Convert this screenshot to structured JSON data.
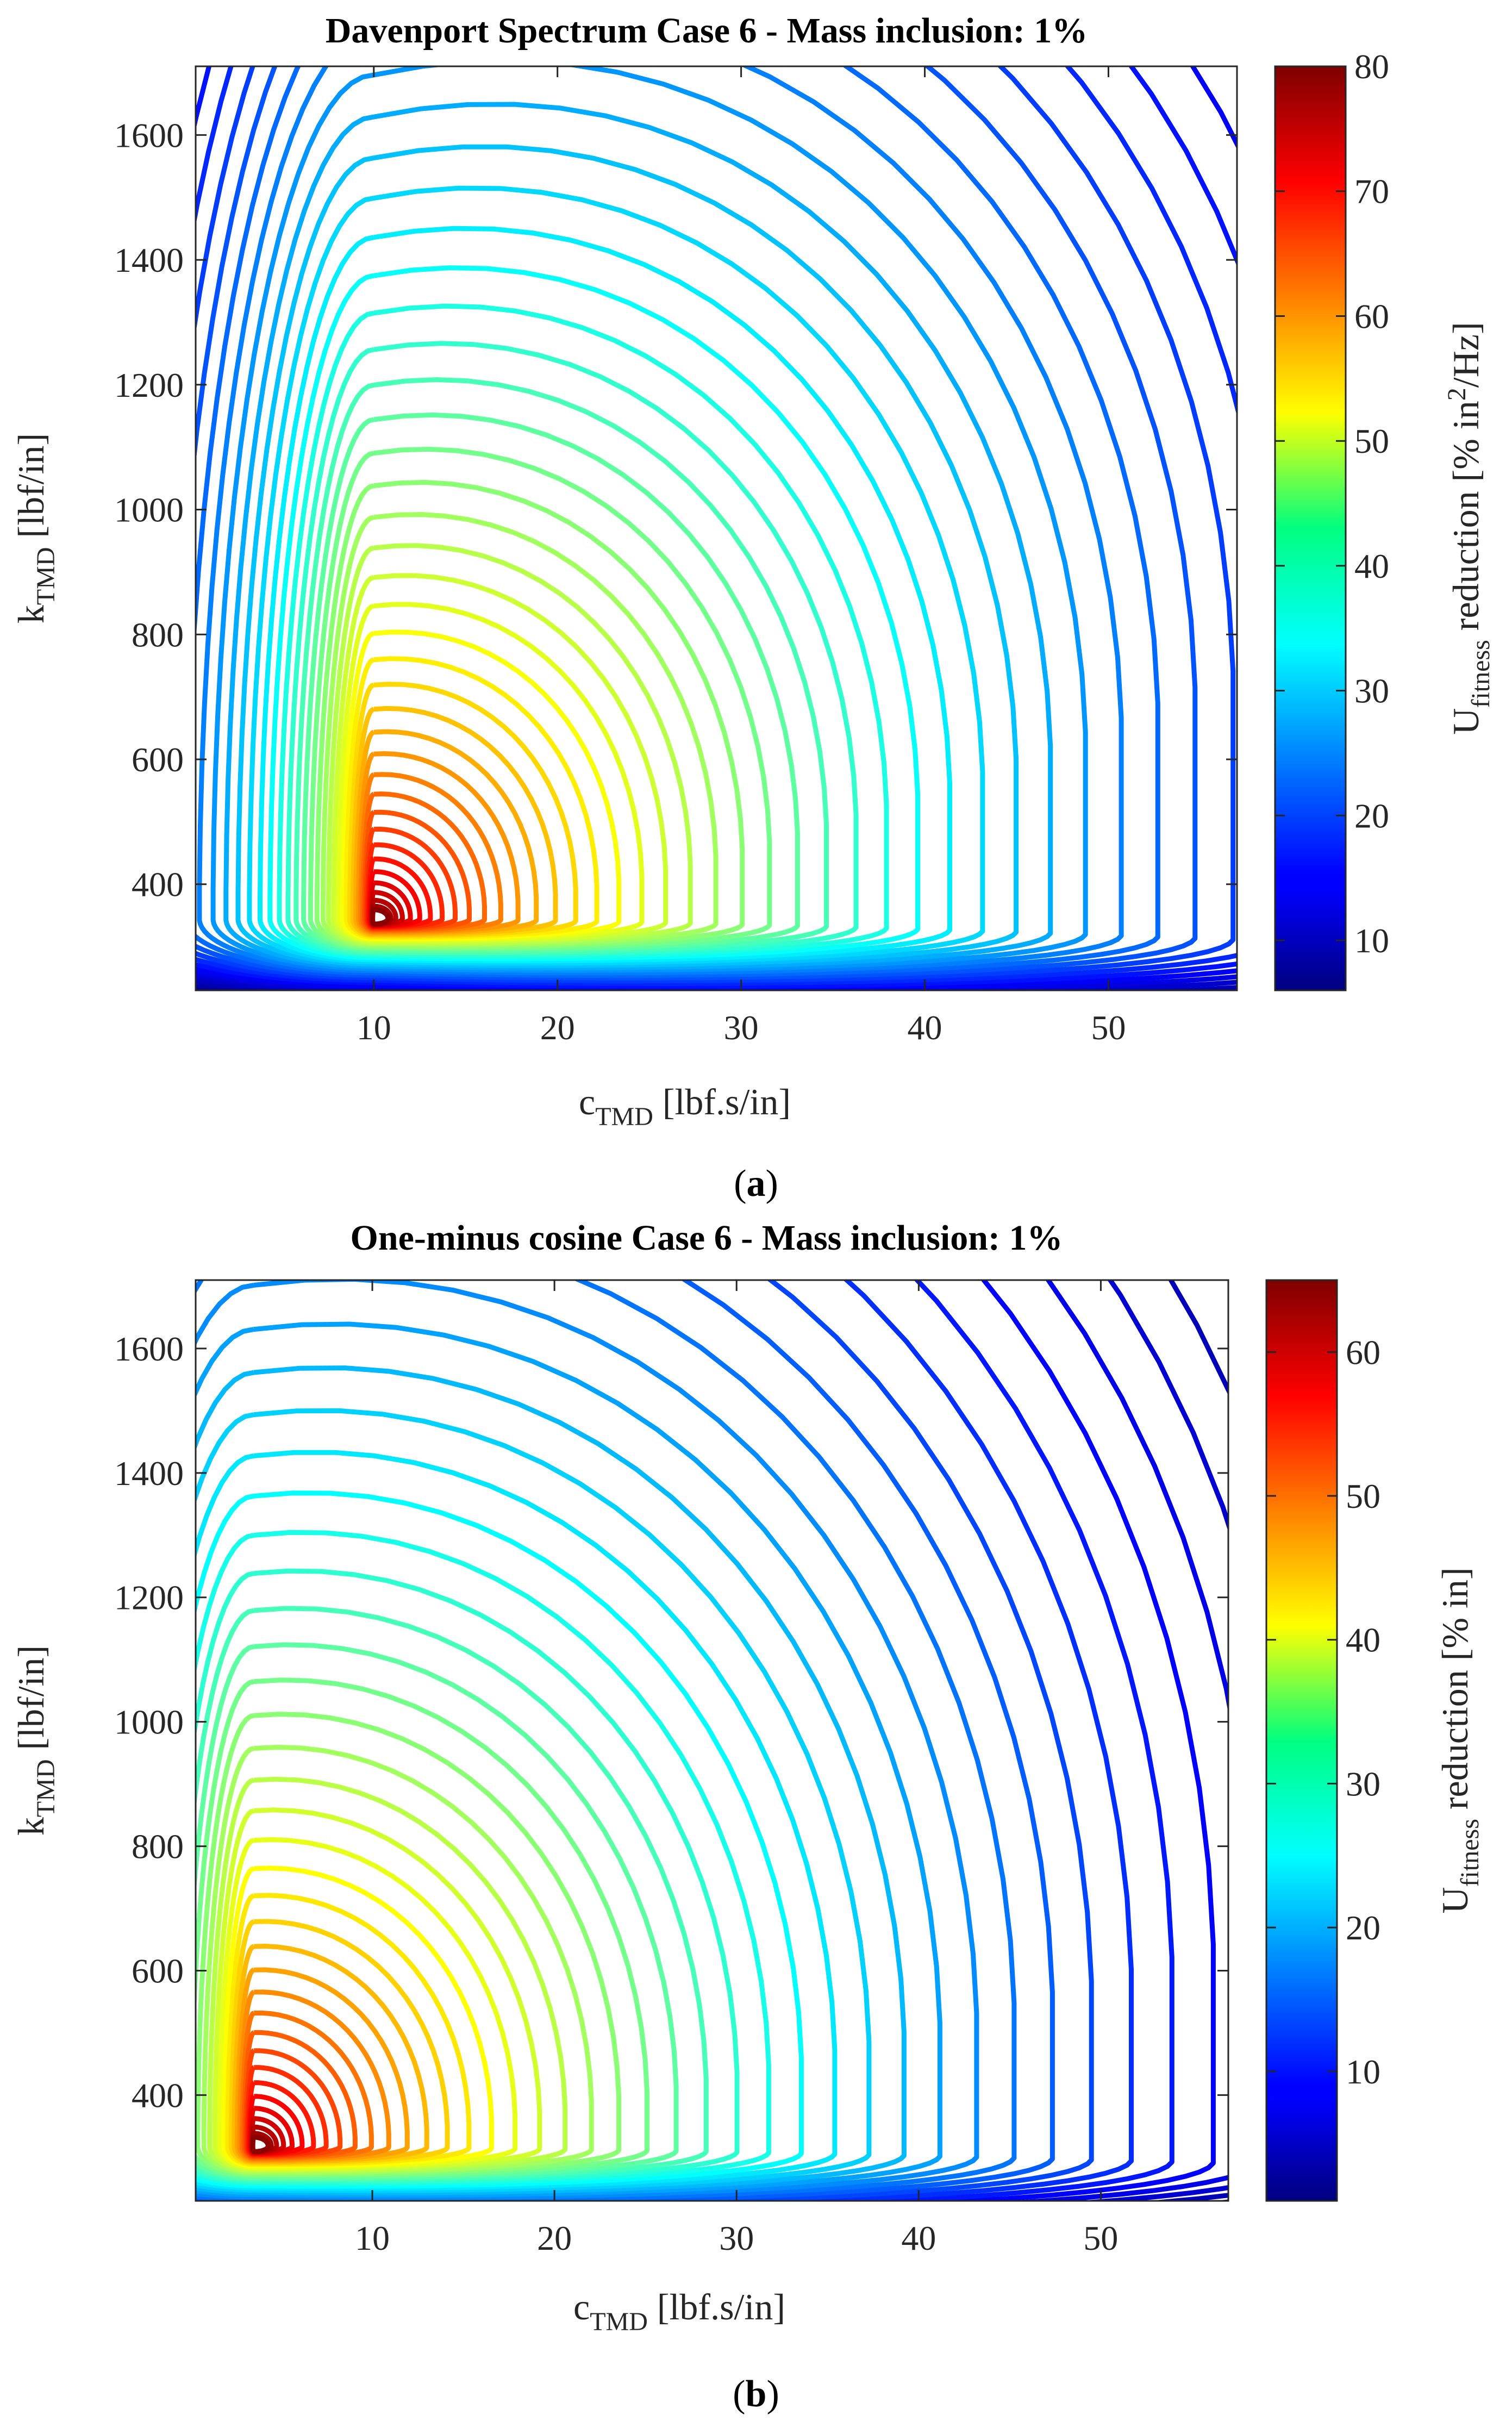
{
  "chart_data": [
    {
      "type": "contour",
      "panel_label": "(a)",
      "caption_open": "(",
      "caption_letter": "a",
      "caption_close": ")",
      "title": "Davenport Spectrum Case 6 - Mass inclusion: 1%",
      "xlabel_main": "c",
      "xlabel_sub": "TMD",
      "xlabel_unit": " [lbf.s/in]",
      "ylabel_main": "k",
      "ylabel_sub": "TMD",
      "ylabel_unit": " [lbf/in]",
      "colorbar_label_main": "U",
      "colorbar_label_sub": "fitness",
      "colorbar_label_rest": " reduction [% in",
      "colorbar_label_sup": "2",
      "colorbar_label_end": "/Hz]",
      "xlim": [
        0.3,
        57
      ],
      "ylim": [
        230,
        1710
      ],
      "xticks": [
        10,
        20,
        30,
        40,
        50
      ],
      "xtick_labels": [
        "10",
        "20",
        "30",
        "40",
        "50"
      ],
      "yticks": [
        400,
        600,
        800,
        1000,
        1200,
        1400,
        1600
      ],
      "ytick_labels": [
        "400",
        "600",
        "800",
        "1000",
        "1200",
        "1400",
        "1600"
      ],
      "clim": [
        6,
        80
      ],
      "colorbar_ticks": [
        10,
        20,
        30,
        40,
        50,
        60,
        70,
        80
      ],
      "colorbar_tick_labels": [
        "10",
        "20",
        "30",
        "40",
        "50",
        "60",
        "70",
        "80"
      ],
      "peak": {
        "c": 10,
        "k": 345,
        "value": 80
      },
      "colormap": "jet",
      "grid": false
    },
    {
      "type": "contour",
      "panel_label": "(b)",
      "caption_open": "(",
      "caption_letter": "b",
      "caption_close": ")",
      "title": "One-minus cosine Case 6 - Mass inclusion: 1%",
      "xlabel_main": "c",
      "xlabel_sub": "TMD",
      "xlabel_unit": " [lbf.s/in]",
      "ylabel_main": "k",
      "ylabel_sub": "TMD",
      "ylabel_unit": " [lbf/in]",
      "colorbar_label_main": "U",
      "colorbar_label_sub": "fitness",
      "colorbar_label_rest": " reduction [% in]",
      "colorbar_label_sup": "",
      "colorbar_label_end": "",
      "xlim": [
        0.3,
        57
      ],
      "ylim": [
        230,
        1710
      ],
      "xticks": [
        10,
        20,
        30,
        40,
        50
      ],
      "xtick_labels": [
        "10",
        "20",
        "30",
        "40",
        "50"
      ],
      "yticks": [
        400,
        600,
        800,
        1000,
        1200,
        1400,
        1600
      ],
      "ytick_labels": [
        "400",
        "600",
        "800",
        "1000",
        "1200",
        "1400",
        "1600"
      ],
      "clim": [
        1,
        65
      ],
      "colorbar_ticks": [
        10,
        20,
        30,
        40,
        50,
        60
      ],
      "colorbar_tick_labels": [
        "10",
        "20",
        "30",
        "40",
        "50",
        "60"
      ],
      "peak": {
        "c": 3.5,
        "k": 318,
        "value": 65
      },
      "colormap": "jet",
      "grid": false
    }
  ]
}
